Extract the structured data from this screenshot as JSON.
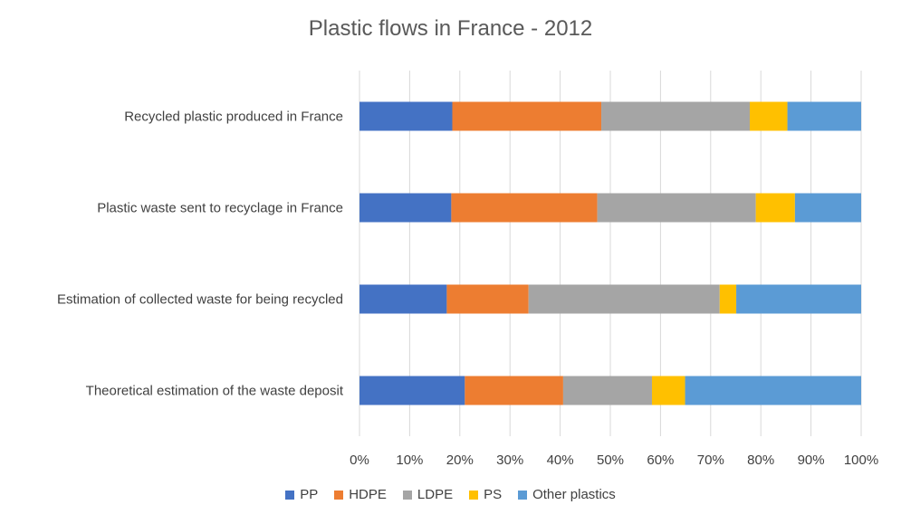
{
  "chart_data": {
    "type": "bar",
    "orientation": "horizontal",
    "stacked": "percent",
    "title": "Plastic flows in France - 2012",
    "categories": [
      "Recycled plastic produced in France",
      "Plastic waste sent to recyclage in France",
      "Estimation of collected waste for being recycled",
      "Theoretical estimation of the waste deposit"
    ],
    "series": [
      {
        "name": "PP",
        "color": "#4472C4",
        "values": [
          18.5,
          18.3,
          17.4,
          21.0
        ]
      },
      {
        "name": "HDPE",
        "color": "#ED7D31",
        "values": [
          29.7,
          29.1,
          16.3,
          19.6
        ]
      },
      {
        "name": "LDPE",
        "color": "#A5A5A5",
        "values": [
          29.6,
          31.6,
          38.1,
          17.7
        ]
      },
      {
        "name": "PS",
        "color": "#FFC000",
        "values": [
          7.5,
          7.8,
          3.3,
          6.6
        ]
      },
      {
        "name": "Other plastics",
        "color": "#5B9BD5",
        "values": [
          14.7,
          13.2,
          24.9,
          35.1
        ]
      }
    ],
    "xlim": [
      0,
      100
    ],
    "xticks": [
      "0%",
      "10%",
      "20%",
      "30%",
      "40%",
      "50%",
      "60%",
      "70%",
      "80%",
      "90%",
      "100%"
    ],
    "grid": true,
    "legend_position": "bottom"
  }
}
